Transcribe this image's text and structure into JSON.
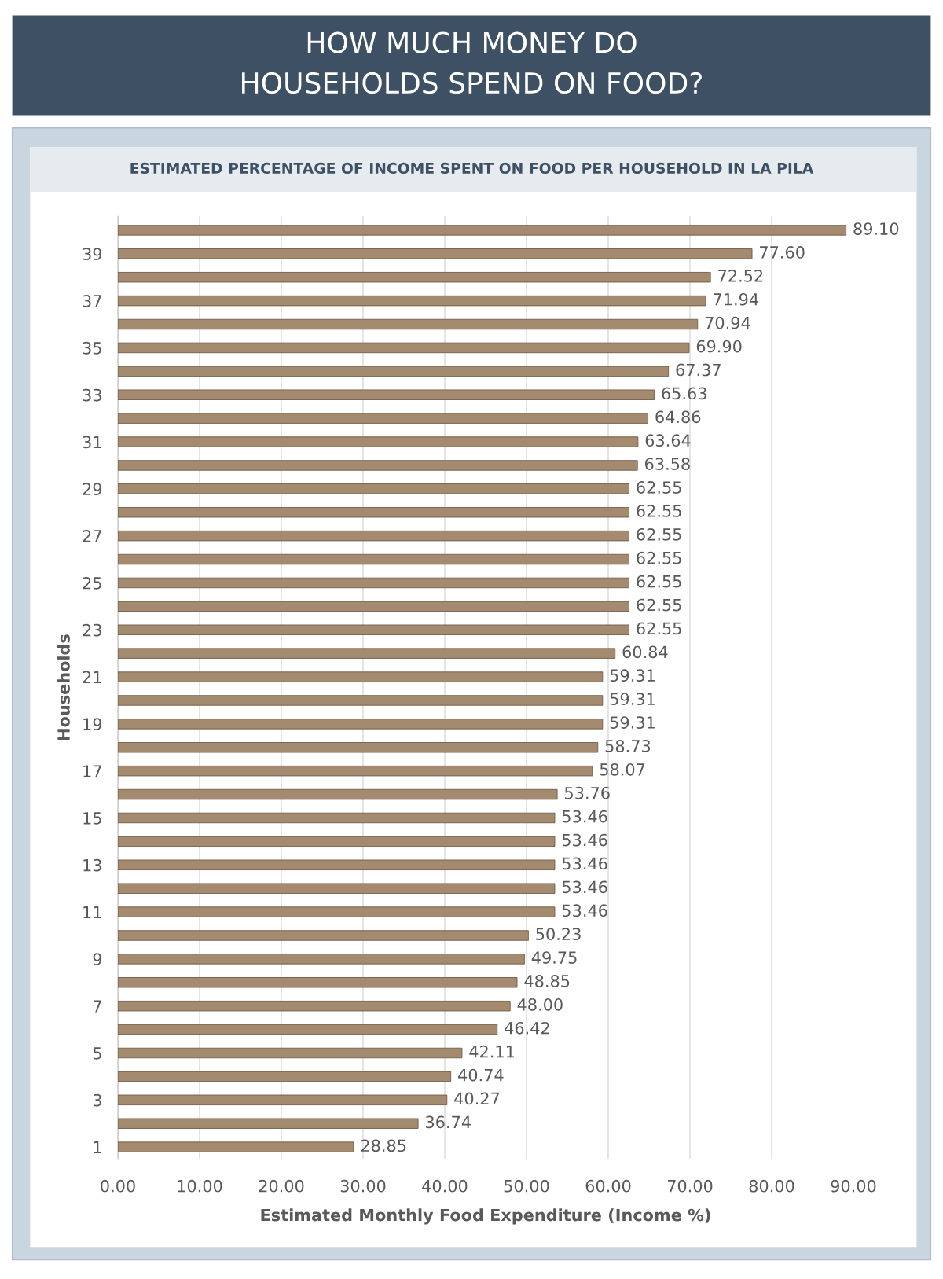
{
  "chart_data": {
    "type": "bar",
    "orientation": "horizontal",
    "title": "HOW MUCH MONEY DO\nHOUSEHOLDS SPEND ON FOOD?",
    "subtitle": "ESTIMATED PERCENTAGE OF INCOME SPENT ON FOOD PER HOUSEHOLD IN LA PILA",
    "xlabel": "Estimated Monthly Food Expenditure (Income %)",
    "ylabel": "Households",
    "categories": [
      null,
      "39",
      null,
      "37",
      null,
      "35",
      null,
      "33",
      null,
      "31",
      null,
      "29",
      null,
      "27",
      null,
      "25",
      null,
      "23",
      null,
      "21",
      null,
      "19",
      null,
      "17",
      null,
      "15",
      null,
      "13",
      null,
      "11",
      null,
      "9",
      null,
      "7",
      null,
      "5",
      null,
      "3",
      null,
      "1"
    ],
    "values": [
      89.1,
      77.6,
      72.52,
      71.94,
      70.94,
      69.9,
      67.37,
      65.63,
      64.86,
      63.64,
      63.58,
      62.55,
      62.55,
      62.55,
      62.55,
      62.55,
      62.55,
      62.55,
      60.84,
      59.31,
      59.31,
      59.31,
      58.73,
      58.07,
      53.76,
      53.46,
      53.46,
      53.46,
      53.46,
      53.46,
      50.23,
      49.75,
      48.85,
      48.0,
      46.42,
      42.11,
      40.74,
      40.27,
      36.74,
      28.85
    ],
    "value_labels": [
      "89.10",
      "77.60",
      "72.52",
      "71.94",
      "70.94",
      "69.90",
      "67.37",
      "65.63",
      "64.86",
      "63.64",
      "63.58",
      "62.55",
      "62.55",
      "62.55",
      "62.55",
      "62.55",
      "62.55",
      "62.55",
      "60.84",
      "59.31",
      "59.31",
      "59.31",
      "58.73",
      "58.07",
      "53.76",
      "53.46",
      "53.46",
      "53.46",
      "53.46",
      "53.46",
      "50.23",
      "49.75",
      "48.85",
      "48.00",
      "46.42",
      "42.11",
      "40.74",
      "40.27",
      "36.74",
      "28.85"
    ],
    "color": "#a48a6e",
    "xlim": [
      0,
      90
    ],
    "xticks": [
      {
        "value": 0,
        "label": "0.00"
      },
      {
        "value": 10,
        "label": "10.00"
      },
      {
        "value": 20,
        "label": "20.00"
      },
      {
        "value": 30,
        "label": "30.00"
      },
      {
        "value": 40,
        "label": "40.00"
      },
      {
        "value": 50,
        "label": "50.00"
      },
      {
        "value": 60,
        "label": "60.00"
      },
      {
        "value": 70,
        "label": "70.00"
      },
      {
        "value": 80,
        "label": "80.00"
      },
      {
        "value": 90,
        "label": "90.00"
      }
    ],
    "grid": "x",
    "legend": false
  }
}
